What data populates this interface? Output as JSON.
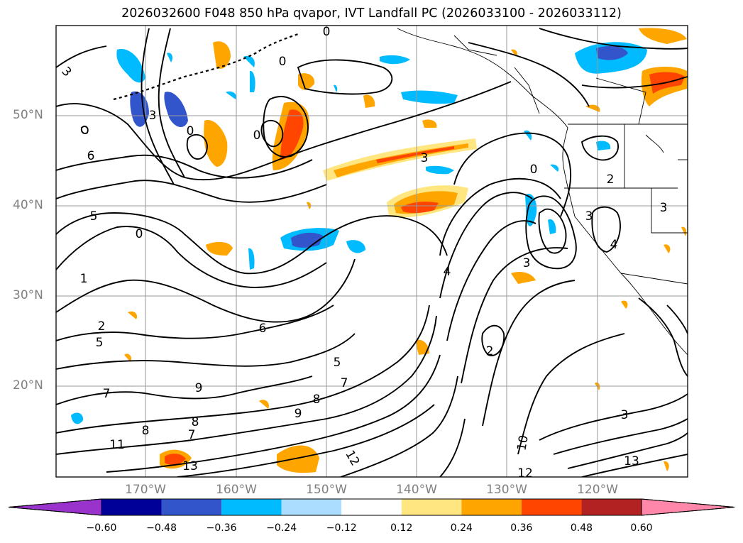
{
  "title": "2026032600 F048 850 hPa qvapor, IVT Landfall PC (2026033100 - 2026033112)",
  "lat_labels": [
    "50°N",
    "40°N",
    "30°N",
    "20°N"
  ],
  "lon_labels": [
    "170°W",
    "160°W",
    "150°W",
    "140°W",
    "130°W",
    "120°W"
  ],
  "colorbar": {
    "ticks": [
      "−0.60",
      "−0.48",
      "−0.36",
      "−0.24",
      "−0.12",
      "0.12",
      "0.24",
      "0.36",
      "0.48",
      "0.60"
    ],
    "colors": [
      "#9933cc",
      "#000099",
      "#3355cc",
      "#00bbff",
      "#aaddff",
      "#ffffff",
      "#ffe680",
      "#ffa500",
      "#ff4500",
      "#b22222",
      "#ff88aa"
    ]
  },
  "contour_labels": [
    "3",
    "6",
    "5",
    "1",
    "0",
    "3",
    "0",
    "0",
    "0",
    "3",
    "6",
    "5",
    "2",
    "7",
    "8",
    "9",
    "13",
    "11",
    "8",
    "7",
    "9",
    "8",
    "7",
    "12",
    "10",
    "12",
    "13",
    "3",
    "4",
    "2",
    "0",
    "2",
    "3",
    "4",
    "3",
    "3",
    "5",
    "0"
  ]
}
